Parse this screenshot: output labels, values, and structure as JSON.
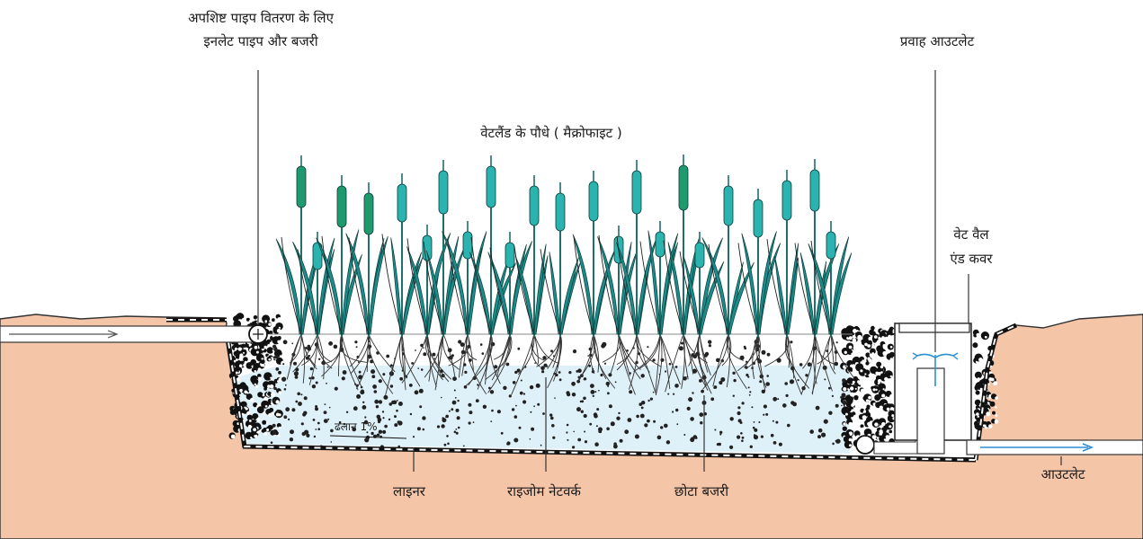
{
  "labels": {
    "inlet_line1": "अपशिष्ट पाइप वितरण के लिए",
    "inlet_line2": "इनलेट पाइप और बजरी",
    "outflow_outlet": "प्रवाह आउटलेट",
    "plants": "वेटलैंड के पौधे ( मैक्रोफाइट )",
    "wetwell_line1": "वेट वैल",
    "wetwell_line2": "एंड कवर",
    "slope": "ढलान 1%",
    "liner": "लाइनर",
    "rhizome": "राइजोम नेटवर्क",
    "gravel": "छोटा बजरी",
    "outlet": "आउटलेट"
  },
  "colors": {
    "soil": "#f5c5a8",
    "water": "#dff1f8",
    "stem": "#1f6f6a",
    "cattail_teal": "#2bb3b0",
    "cattail_green": "#1e9a6e",
    "leaf": "#1b8c8a",
    "flow_arrow": "#2a8fd6"
  }
}
